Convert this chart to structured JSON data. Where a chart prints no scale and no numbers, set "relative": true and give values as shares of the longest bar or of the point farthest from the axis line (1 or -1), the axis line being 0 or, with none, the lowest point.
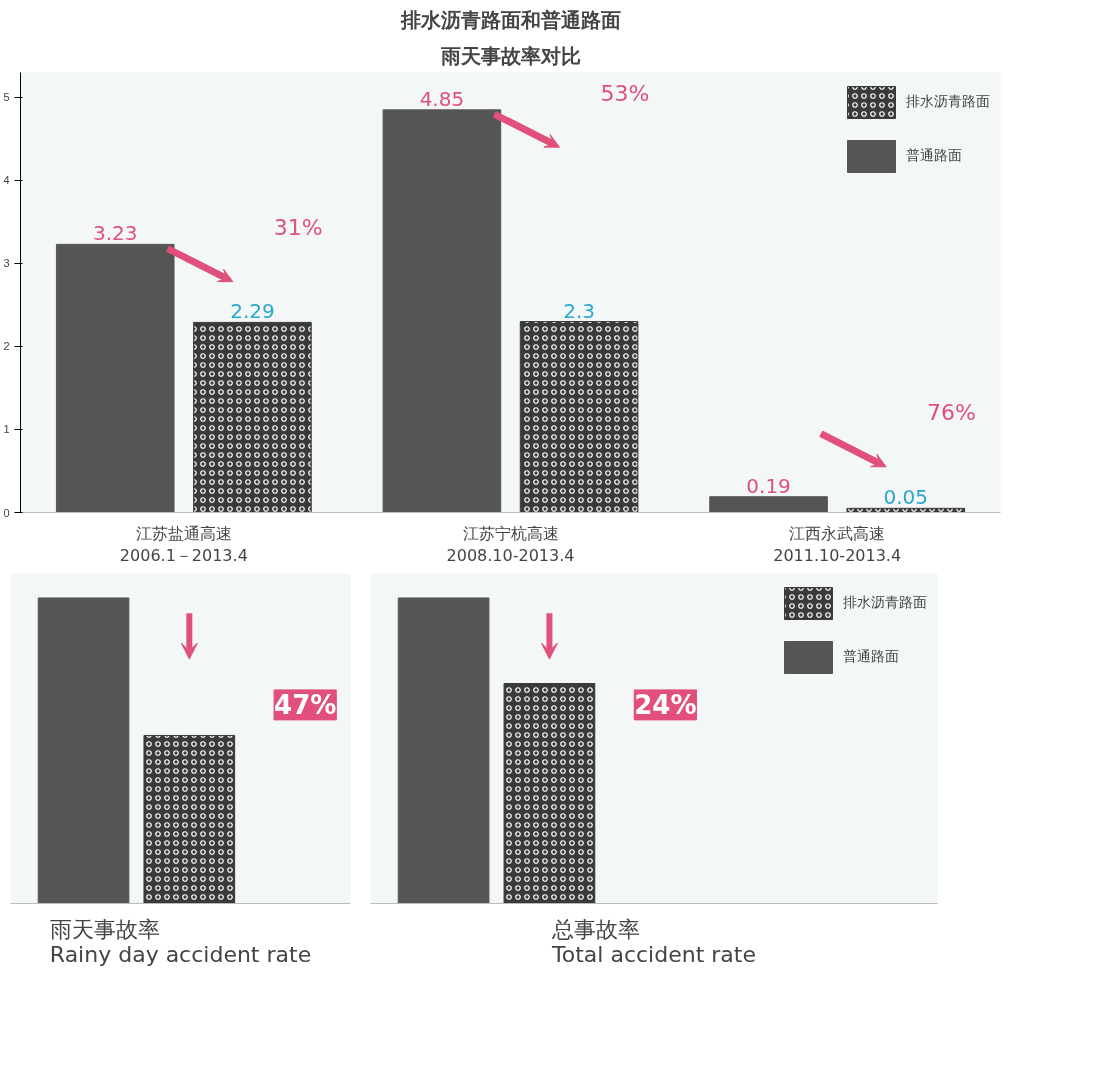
{
  "chart_data": [
    {
      "type": "bar",
      "title": "排水沥青路面和普通路面",
      "subtitle": "雨天事故率对比",
      "categories": [
        "江苏盐通高速\n2006.1－2013.4",
        "江苏宁杭高速\n2008.10-2013.4",
        "江西永武高速\n2011.10-2013.4"
      ],
      "series": [
        {
          "name": "普通路面",
          "color": "#555555",
          "values": [
            3.23,
            4.85,
            0.19
          ]
        },
        {
          "name": "排水沥青路面",
          "color": "#3a3a3a",
          "values": [
            2.29,
            2.3,
            0.05
          ]
        }
      ],
      "ylim": [
        0,
        5.3
      ],
      "yticks": [
        0,
        1,
        2,
        3,
        4,
        5
      ],
      "data_labels": true,
      "legend": "top right",
      "grid": false,
      "annotations": [
        "31%",
        "53%",
        "76%"
      ]
    },
    {
      "type": "bar",
      "relative": true,
      "title": "雨天事故率\nRainy day accident rate",
      "categories": [
        null
      ],
      "series": [
        {
          "color": "#555555",
          "values": [
            1
          ]
        },
        {
          "color": "#3a3a3a",
          "values": [
            0.55
          ]
        }
      ],
      "annotations": [
        "47%"
      ]
    },
    {
      "type": "bar",
      "relative": true,
      "title": "总事故率\nTotal accident rate",
      "categories": [
        null
      ],
      "series": [
        {
          "name": "普通路面",
          "color": "#555555",
          "values": [
            1
          ]
        },
        {
          "name": "排水沥青路面",
          "color": "#3a3a3a",
          "values": [
            0.72
          ]
        }
      ],
      "legend": "top right",
      "annotations": [
        "24%"
      ]
    }
  ]
}
